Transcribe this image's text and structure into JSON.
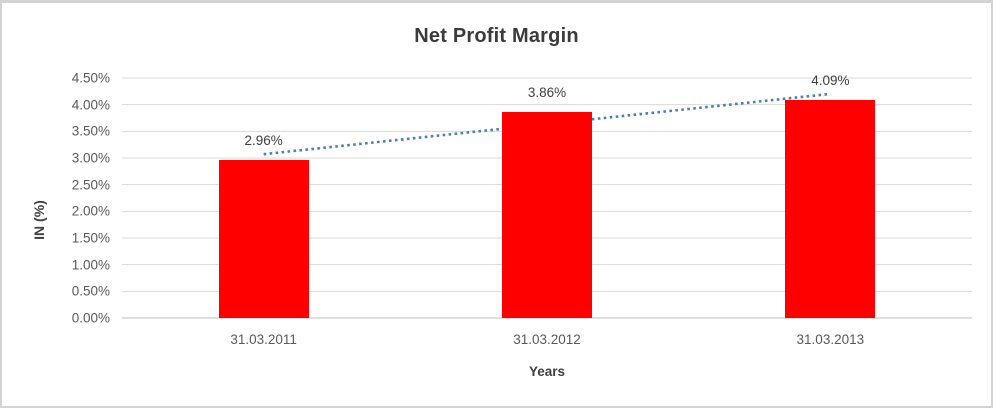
{
  "window": {
    "background": "#ffffff",
    "border_color": "#d3d3d3"
  },
  "chart_data": {
    "type": "bar",
    "title": "Net Profit Margin",
    "categories": [
      "31.03.2011",
      "31.03.2012",
      "31.03.2013"
    ],
    "values": [
      2.96,
      3.86,
      4.09
    ],
    "data_labels": [
      "2.96%",
      "3.86%",
      "4.09%"
    ],
    "xlabel": "Years",
    "ylabel": "IN (%)",
    "ylim": [
      0,
      4.5
    ],
    "ytick_step": 0.5,
    "ytick_labels": [
      "0.00%",
      "0.50%",
      "1.00%",
      "1.50%",
      "2.00%",
      "2.50%",
      "3.00%",
      "3.50%",
      "4.00%",
      "4.50%"
    ],
    "grid": true,
    "legend": "none",
    "bar_color": "#ff0000",
    "trendline": {
      "type": "linear",
      "style": "dotted",
      "color": "#4a7ebb"
    },
    "colors": {
      "gridline": "#d9d9d9",
      "axis_line": "#bfbfbf",
      "tick_label": "#595959",
      "title": "#3b3b3b",
      "data_label": "#404040"
    }
  }
}
